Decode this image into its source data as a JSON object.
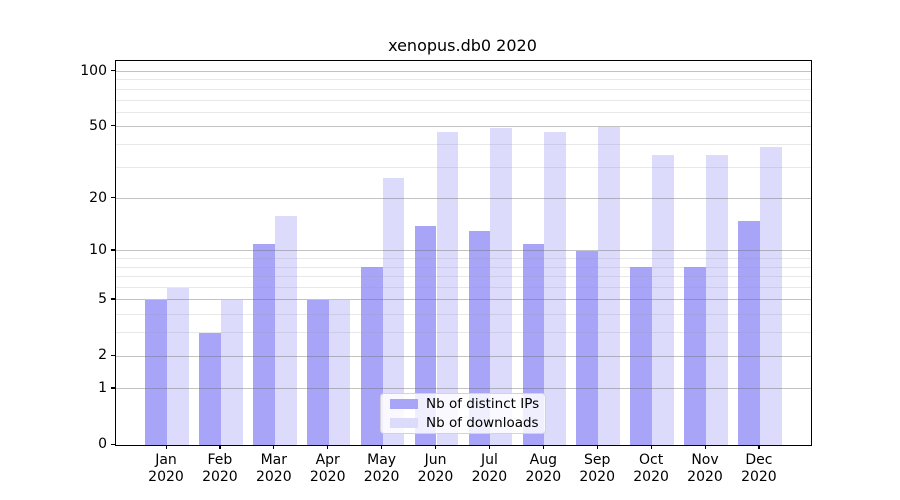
{
  "figure": {
    "title": "xenopus.db0 2020"
  },
  "chart_data": {
    "type": "bar",
    "title": "xenopus.db0 2020",
    "xlabel": "",
    "ylabel": "",
    "categories": [
      "Jan",
      "Feb",
      "Mar",
      "Apr",
      "May",
      "Jun",
      "Jul",
      "Aug",
      "Sep",
      "Oct",
      "Nov",
      "Dec"
    ],
    "category_year": "2020",
    "series": [
      {
        "name": "Nb of distinct IPs",
        "color": "#a8a5f8",
        "values": [
          5,
          3,
          11,
          5,
          8,
          14,
          13,
          11,
          10,
          8,
          8,
          15
        ]
      },
      {
        "name": "Nb of downloads",
        "color": "#dcdbfb",
        "values": [
          6,
          5,
          16,
          5,
          26,
          47,
          49,
          47,
          50,
          35,
          35,
          39
        ]
      }
    ],
    "yscale": "log1p",
    "ylim": [
      0,
      114
    ],
    "ytick_values": [
      0,
      1,
      2,
      5,
      10,
      20,
      50,
      100
    ],
    "ytick_labels": [
      "0",
      "1",
      "2",
      "5",
      "10",
      "20",
      "50",
      "100"
    ],
    "minor_grid_values": [
      3,
      4,
      6,
      7,
      8,
      9,
      30,
      40,
      60,
      70,
      80,
      90
    ],
    "grid": true,
    "legend_position": "lower center"
  },
  "legend": {
    "items": [
      {
        "label": "Nb of distinct IPs",
        "color": "#a8a5f8"
      },
      {
        "label": "Nb of downloads",
        "color": "#dcdbfb"
      }
    ]
  },
  "colors": {
    "background": "#ffffff",
    "axis": "#000000",
    "major_grid": "#c6c6c6",
    "minor_grid": "#e6e6ea",
    "bar_dark": "#a8a5f8",
    "bar_light": "#dcdbfb"
  }
}
